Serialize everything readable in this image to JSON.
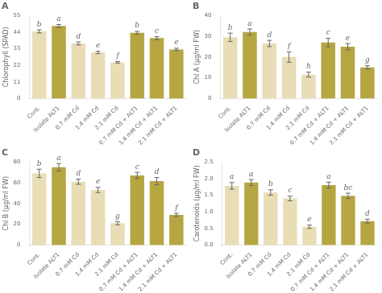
{
  "chart_data": [
    {
      "type": "bar",
      "title": "A",
      "ylabel": "Chlorophyll (SPAD)",
      "categories": [
        "Cont.",
        "Isolate ALT1",
        "0.7 mM Cd",
        "1.4 mM Cd",
        "2.1 mM Cd",
        "0.7 mM Cd + ALT1",
        "1.4 mM Cd + ALT1",
        "2.1 mM Cd + ALT1"
      ],
      "values": [
        44.5,
        48.0,
        36.5,
        30.5,
        24.0,
        43.5,
        40.0,
        32.5
      ],
      "errors": [
        1.0,
        1.0,
        1.0,
        0.8,
        0.5,
        1.0,
        1.0,
        0.8
      ],
      "annotations": [
        "b",
        "a",
        "d",
        "e",
        "f",
        "b",
        "c",
        "e"
      ],
      "colors": [
        "#e8ddb5",
        "#b5a642",
        "#e8ddb5",
        "#e8ddb5",
        "#e8ddb5",
        "#b5a642",
        "#b5a642",
        "#b5a642"
      ],
      "ylim": [
        0,
        55
      ],
      "yticks": [
        0,
        11,
        22,
        33,
        44,
        55
      ],
      "grid": false
    },
    {
      "type": "bar",
      "title": "B",
      "ylabel": "Chl A (μg/ml FW)",
      "categories": [
        "Cont.",
        "Isolate ALT1",
        "0.7 mM Cd",
        "1.4 mM Cd",
        "2.1 mM Cd",
        "0.7 mM Cd + ALT1",
        "1.4 mM Cd + ALT1",
        "2.1 mM Cd + ALT1"
      ],
      "values": [
        29.5,
        32.0,
        26.5,
        20.0,
        11.5,
        27.0,
        25.0,
        15.0
      ],
      "errors": [
        2.0,
        1.5,
        1.5,
        2.5,
        1.2,
        2.0,
        1.5,
        0.8
      ],
      "annotations": [
        "b",
        "a",
        "d",
        "f",
        "h",
        "c",
        "e",
        "g"
      ],
      "colors": [
        "#e8ddb5",
        "#b5a642",
        "#e8ddb5",
        "#e8ddb5",
        "#e8ddb5",
        "#b5a642",
        "#b5a642",
        "#b5a642"
      ],
      "ylim": [
        0,
        40
      ],
      "yticks": [
        0,
        10,
        20,
        30,
        40
      ],
      "grid": false
    },
    {
      "type": "bar",
      "title": "C",
      "ylabel": "Chl B (μg/ml FW)",
      "categories": [
        "Cont.",
        "Isolate ALT1",
        "0.7 mM Cd",
        "1.4 mM Cd",
        "2.1 mM Cd",
        "0.7 mM Cd + ALT1",
        "1.4 mM Cd + ALT1",
        "2.1 mM Cd + ALT1"
      ],
      "values": [
        69.0,
        75.0,
        61.0,
        53.0,
        21.0,
        67.0,
        61.5,
        29.0
      ],
      "errors": [
        4.0,
        3.5,
        2.5,
        2.5,
        1.5,
        3.0,
        3.5,
        1.5
      ],
      "annotations": [
        "b",
        "a",
        "d",
        "e",
        "g",
        "c",
        "d",
        "f"
      ],
      "colors": [
        "#e8ddb5",
        "#b5a642",
        "#e8ddb5",
        "#e8ddb5",
        "#e8ddb5",
        "#b5a642",
        "#b5a642",
        "#b5a642"
      ],
      "ylim": [
        0,
        80
      ],
      "yticks": [
        0,
        20,
        40,
        60,
        80
      ],
      "grid": false
    },
    {
      "type": "bar",
      "title": "D",
      "ylabel": "Carotenoids (μg/ml FW)",
      "categories": [
        "Cont.",
        "Isolate ALT1",
        "0.7 mM Cd",
        "1.4 mM Cd",
        "2.1 mM Cd",
        "0.7 mM Cd + ALT1",
        "1.4 mM Cd + ALT1",
        "2.1 mM Cd + ALT1"
      ],
      "values": [
        1.78,
        1.88,
        1.58,
        1.4,
        0.55,
        1.8,
        1.48,
        0.72
      ],
      "errors": [
        0.1,
        0.09,
        0.08,
        0.07,
        0.05,
        0.09,
        0.08,
        0.06
      ],
      "annotations": [
        "a",
        "a",
        "b",
        "c",
        "e",
        "a",
        "bc",
        "d"
      ],
      "colors": [
        "#e8ddb5",
        "#b5a642",
        "#e8ddb5",
        "#e8ddb5",
        "#e8ddb5",
        "#b5a642",
        "#b5a642",
        "#b5a642"
      ],
      "ylim": [
        0.0,
        2.5
      ],
      "yticks": [
        {
          "value": 0,
          "label": "0.0"
        },
        {
          "value": 0.5,
          "label": "0.5"
        },
        {
          "value": 1,
          "label": "1.0"
        },
        {
          "value": 1.5,
          "label": "1.5"
        },
        {
          "value": 2,
          "label": "2.0"
        },
        {
          "value": 2.5,
          "label": "2.5"
        }
      ],
      "grid": false
    }
  ]
}
